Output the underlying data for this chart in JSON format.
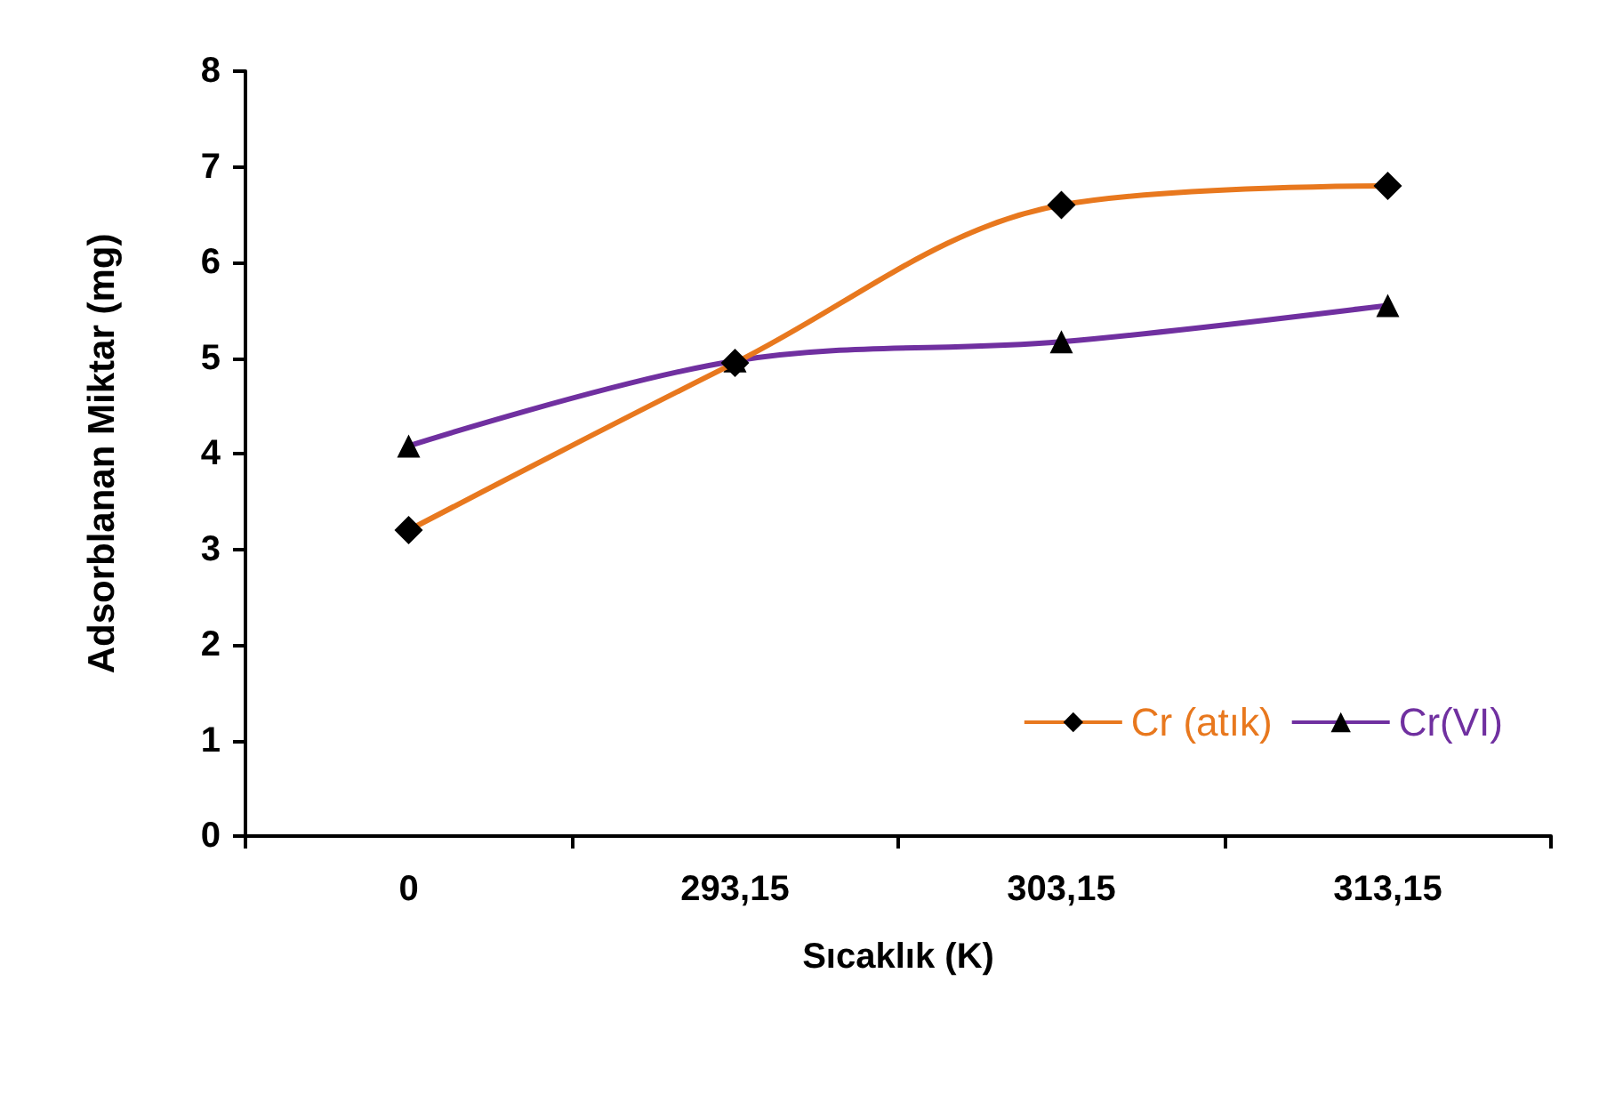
{
  "chart_data": {
    "type": "line",
    "xlabel": "Sıcaklık (K)",
    "ylabel": "Adsorblanan Miktar (mg)",
    "categories": [
      "0",
      "293,15",
      "303,15",
      "313,15"
    ],
    "series": [
      {
        "name": "Cr (atık)",
        "color": "#e8781e",
        "marker": "diamond",
        "values": [
          3.2,
          4.95,
          6.6,
          6.8
        ]
      },
      {
        "name": "Cr(VI)",
        "color": "#7030a0",
        "marker": "triangle",
        "values": [
          4.08,
          4.97,
          5.17,
          5.55
        ]
      }
    ],
    "ylim": [
      0,
      8
    ],
    "yticks": [
      0,
      1,
      2,
      3,
      4,
      5,
      6,
      7,
      8
    ],
    "grid": false,
    "legend": "bottom right",
    "line_style": "solid"
  }
}
